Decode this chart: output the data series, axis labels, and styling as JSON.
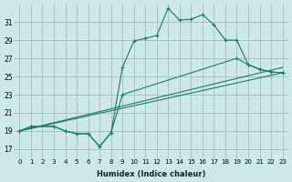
{
  "background_color": "#cce8e8",
  "grid_color": "#aabbbb",
  "line_color": "#1a7a6a",
  "x_label": "Humidex (Indice chaleur)",
  "x_tick_labels": [
    "0",
    "1",
    "2",
    "3",
    "4",
    "5",
    "6",
    "7",
    "8",
    "9",
    "10",
    "11",
    "12",
    "13",
    "14",
    "15",
    "16",
    "17",
    "18",
    "19",
    "20",
    "21",
    "22",
    "23"
  ],
  "xlim": [
    -0.5,
    23.5
  ],
  "y_ticks": [
    17,
    19,
    21,
    23,
    25,
    27,
    29,
    31
  ],
  "ylim": [
    16.0,
    33.0
  ],
  "line1_x": [
    0,
    1,
    3,
    4,
    5,
    6,
    7,
    8,
    9,
    10,
    11,
    12,
    13,
    14,
    15,
    16,
    17,
    18,
    19,
    20,
    21,
    22,
    23
  ],
  "line1_y": [
    19.0,
    19.5,
    19.5,
    19.0,
    18.7,
    18.7,
    17.3,
    18.8,
    26.0,
    28.9,
    29.2,
    29.5,
    32.5,
    31.2,
    31.3,
    31.8,
    30.7,
    29.0,
    29.0,
    26.3,
    25.8,
    25.5,
    25.4
  ],
  "line2_x": [
    0,
    23
  ],
  "line2_y": [
    19.0,
    26.0
  ],
  "line3_x": [
    0,
    23
  ],
  "line3_y": [
    19.0,
    25.4
  ],
  "line4_x": [
    0,
    1,
    3,
    4,
    5,
    6,
    7,
    8,
    9,
    19,
    20,
    21,
    22,
    23
  ],
  "line4_y": [
    19.0,
    19.5,
    19.5,
    19.0,
    18.7,
    18.7,
    17.3,
    18.8,
    23.0,
    27.0,
    26.3,
    25.8,
    25.5,
    25.4
  ]
}
